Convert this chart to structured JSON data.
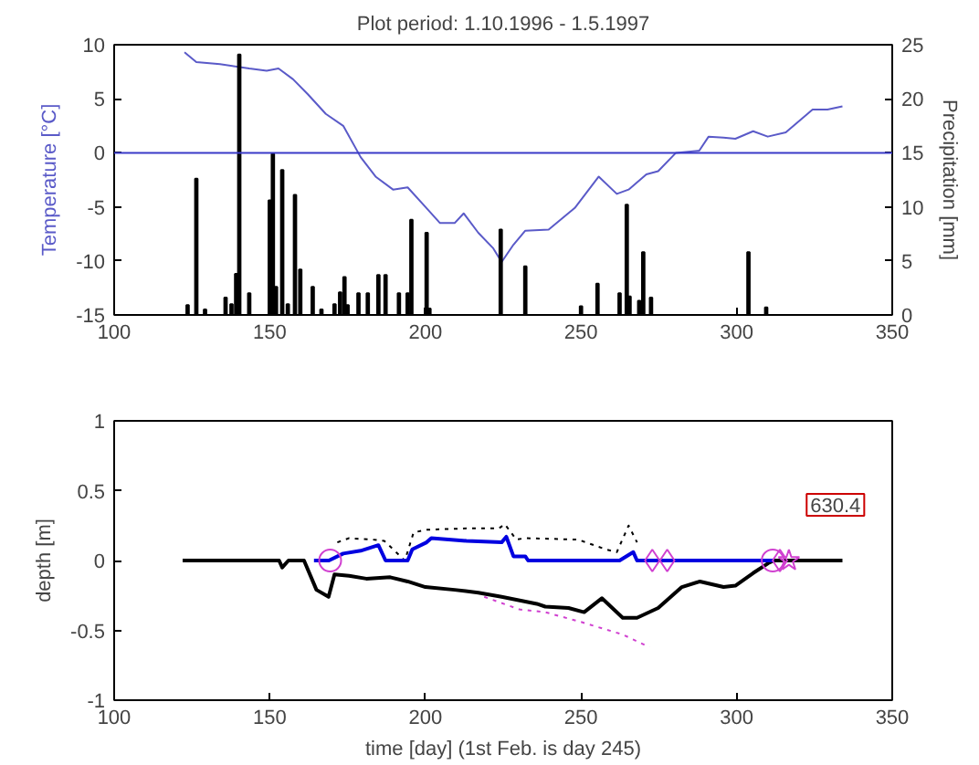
{
  "chart_data": [
    {
      "type": "line",
      "title": "Plot period: 1.10.1996 - 1.5.1997",
      "ylabel": "Temperature [°C]",
      "y2label": "Precipitation [mm]",
      "xlim": [
        100,
        350
      ],
      "xticks": [
        100,
        150,
        200,
        250,
        300,
        350
      ],
      "ylim": [
        -15,
        10
      ],
      "yticks": [
        -15,
        -10,
        -5,
        0,
        5,
        10
      ],
      "y2lim": [
        0,
        25
      ],
      "y2ticks": [
        0,
        5,
        10,
        15,
        20,
        25
      ],
      "grid": false,
      "ref_lines": [
        {
          "axis": "y",
          "value": 0,
          "color": "#3a3ac8"
        }
      ],
      "series": [
        {
          "color": "#5a5ac8",
          "x": [
            122.6,
            126.4,
            134,
            143.4,
            149,
            152.8,
            157.5,
            162.3,
            168,
            173.6,
            179.2,
            184,
            189.6,
            194.3,
            200,
            204.7,
            209.4,
            212.3,
            217,
            221.7,
            224.5,
            228.3,
            232.1,
            239.6,
            248,
            255.7,
            261.5,
            265.3,
            271,
            274.8,
            280.5,
            288,
            291,
            295.8,
            299.6,
            305.3,
            310,
            315.8,
            324.4,
            329.2,
            334
          ],
          "values": [
            9.3,
            8.4,
            8.2,
            7.8,
            7.6,
            7.8,
            6.8,
            5.4,
            3.6,
            2.5,
            -0.4,
            -2.2,
            -3.4,
            -3.2,
            -5.0,
            -6.5,
            -6.5,
            -5.6,
            -7.4,
            -8.8,
            -10.1,
            -8.5,
            -7.2,
            -7.1,
            -5.1,
            -2.2,
            -3.8,
            -3.4,
            -2.0,
            -1.7,
            0,
            0.2,
            1.5,
            1.4,
            1.3,
            2.0,
            1.5,
            1.9,
            4.0,
            4.0,
            4.3
          ]
        },
        {
          "type": "bar",
          "axis": "y2",
          "color": "#000000",
          "x": [
            123.6,
            126.4,
            129.2,
            135.8,
            137.7,
            139.2,
            140.2,
            143.4,
            150,
            151,
            152,
            154,
            155.8,
            158.1,
            159.8,
            163.8,
            166.6,
            170.8,
            172.6,
            174,
            175,
            178.5,
            181.5,
            184.9,
            187.2,
            191.5,
            194.3,
            195.5,
            200.4,
            201.3,
            224.2,
            232.1,
            250,
            255.3,
            262.4,
            264.7,
            265.6,
            268.7,
            270,
            272.5,
            303.8,
            309.5
          ],
          "values": [
            0.9,
            12.6,
            0.5,
            1.6,
            1.0,
            3.8,
            24.1,
            2.0,
            10.6,
            14.9,
            2.6,
            13.4,
            1.0,
            11.1,
            4.2,
            2.6,
            0.5,
            1.0,
            2.1,
            3.5,
            0.9,
            2.0,
            2.0,
            3.7,
            3.7,
            2.0,
            2.0,
            8.8,
            7.6,
            0.6,
            7.9,
            4.5,
            0.8,
            2.9,
            2.0,
            10.2,
            1.7,
            1.3,
            5.8,
            1.6,
            5.8,
            0.7
          ]
        }
      ]
    },
    {
      "type": "line",
      "ylabel": "depth [m]",
      "xlabel": "time [day] (1st Feb. is day 245)",
      "xlim": [
        100,
        350
      ],
      "xticks": [
        100,
        150,
        200,
        250,
        300,
        350
      ],
      "ylim": [
        -1,
        1
      ],
      "yticks": [
        -1,
        -0.5,
        0,
        0.5,
        1
      ],
      "grid": false,
      "annotations": [
        "630.4"
      ],
      "series": [
        {
          "color": "#000000",
          "line_style": "dotted",
          "x": [
            171.7,
            175.5,
            183,
            186.8,
            193.4,
            196.2,
            200,
            213.2,
            223.6,
            225.5,
            229.2,
            232,
            249,
            258,
            261.5,
            265.3,
            268
          ],
          "values": [
            0.13,
            0.16,
            0.15,
            0.14,
            0,
            0.2,
            0.22,
            0.23,
            0.23,
            0.26,
            0.15,
            0.16,
            0.15,
            0.08,
            0.06,
            0.25,
            0.13
          ]
        },
        {
          "color": "#d040d0",
          "line_style": "dotted",
          "x": [
            218.9,
            230.2,
            238.5,
            250,
            263.4,
            272
          ],
          "values": [
            -0.26,
            -0.35,
            -0.37,
            -0.44,
            -0.53,
            -0.62
          ]
        },
        {
          "color": "#000000",
          "line_style": "solid",
          "x": [
            122,
            153,
            154,
            156,
            161,
            165,
            168.9,
            170.8,
            175.5,
            181,
            188.7,
            194.3,
            200,
            209.4,
            217,
            224.5,
            235.8,
            238.5,
            246,
            251,
            256.7,
            263.4,
            268,
            274.8,
            282.4,
            288.2,
            295.8,
            299.6,
            305.3,
            310.1,
            312,
            334
          ],
          "values": [
            0,
            0,
            -0.05,
            0,
            0,
            -0.21,
            -0.26,
            -0.1,
            -0.11,
            -0.13,
            -0.12,
            -0.15,
            -0.19,
            -0.21,
            -0.23,
            -0.26,
            -0.31,
            -0.33,
            -0.34,
            -0.37,
            -0.27,
            -0.41,
            -0.41,
            -0.34,
            -0.19,
            -0.15,
            -0.19,
            -0.18,
            -0.09,
            -0.02,
            0,
            0
          ]
        },
        {
          "color": "#0000e0",
          "line_style": "solid",
          "x": [
            164.2,
            169,
            173.6,
            179.2,
            184.9,
            187.2,
            194.3,
            195.8,
            200.4,
            201.9,
            213.2,
            224.5,
            226,
            228.3,
            232.1,
            233,
            262.4,
            266.8,
            268,
            312
          ],
          "values": [
            0,
            0,
            0.05,
            0.07,
            0.11,
            0,
            0,
            0.08,
            0.13,
            0.16,
            0.14,
            0.13,
            0.17,
            0.03,
            0.03,
            0,
            0,
            0.06,
            0,
            0
          ]
        },
        {
          "type": "scatter",
          "marker": "circle",
          "color": "#d040d0",
          "x": [
            169.4,
            311.6
          ],
          "values": [
            0,
            0
          ]
        },
        {
          "type": "scatter",
          "marker": "diamond",
          "color": "#d040d0",
          "x": [
            272.9,
            277.7,
            313.9
          ],
          "values": [
            0,
            0,
            0
          ]
        },
        {
          "type": "scatter",
          "marker": "star",
          "color": "#d040d0",
          "x": [
            316.8
          ],
          "values": [
            0
          ]
        }
      ]
    }
  ]
}
